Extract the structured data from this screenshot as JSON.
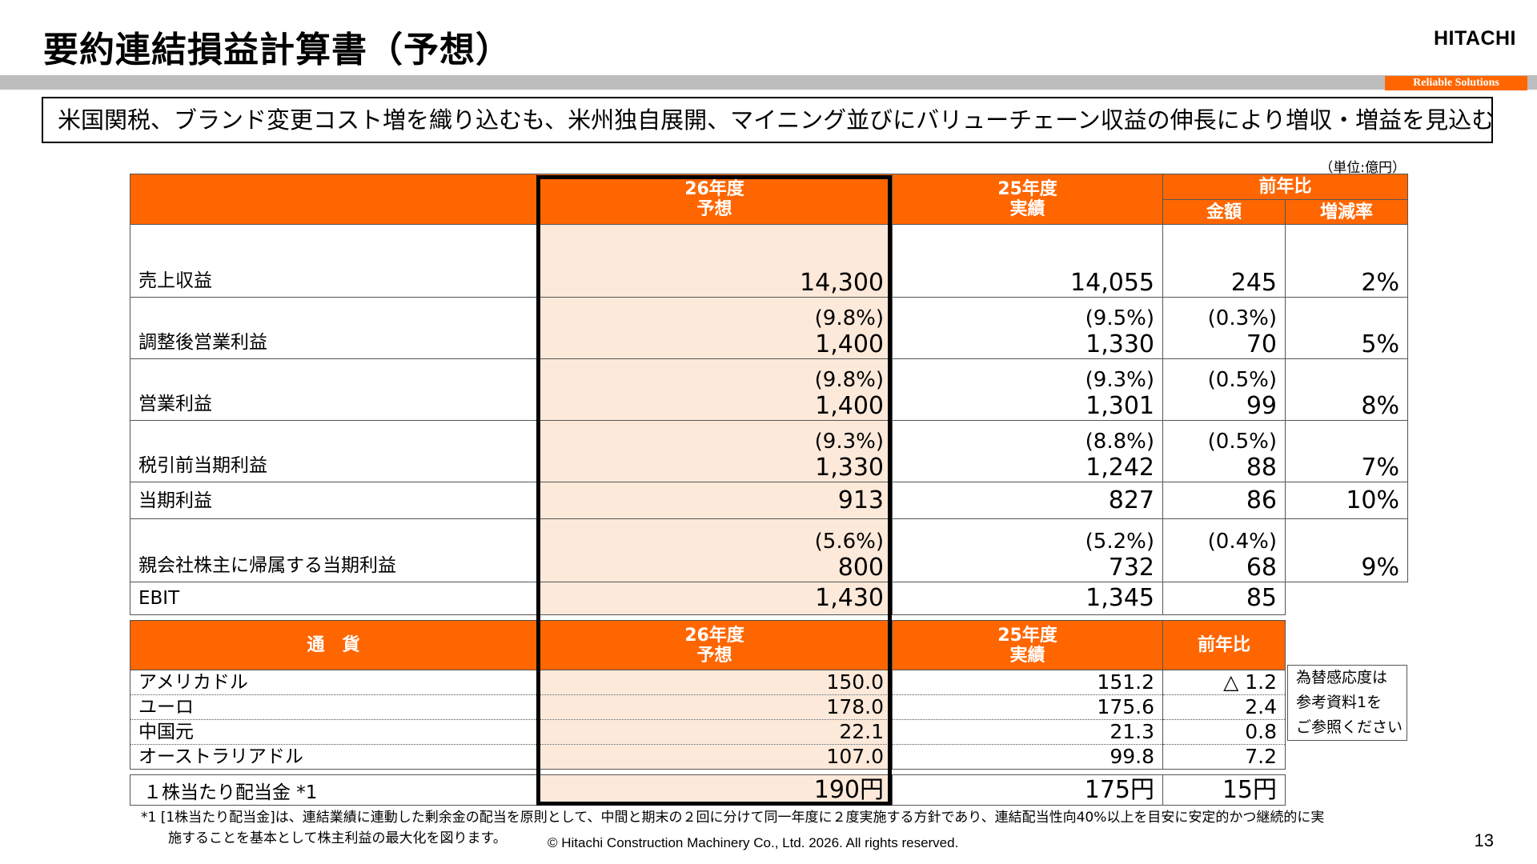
{
  "header": {
    "title": "要約連結損益計算書（予想）",
    "logo": "HITACHI",
    "tagline": "Reliable Solutions"
  },
  "headline": "米国関税、ブランド変更コスト増を織り込むも、米州独自展開、マイニング並びにバリューチェーン収益の伸長により増収・増益を見込む。",
  "unit": "（単位:億円）",
  "main_table": {
    "col_fc_line1": "26年度",
    "col_fc_line2": "予想",
    "col_act_line1": "25年度",
    "col_act_line2": "実績",
    "col_yoy": "前年比",
    "col_amount": "金額",
    "col_rate": "増減率",
    "rows": [
      {
        "label": "売上収益",
        "fc_pct": "",
        "fc": "14,300",
        "act_pct": "",
        "act": "14,055",
        "diff_pct": "",
        "diff": "245",
        "rate": "2%"
      },
      {
        "label": "調整後営業利益",
        "fc_pct": "(9.8%)",
        "fc": "1,400",
        "act_pct": "(9.5%)",
        "act": "1,330",
        "diff_pct": "(0.3%)",
        "diff": "70",
        "rate": "5%"
      },
      {
        "label": "営業利益",
        "fc_pct": "(9.8%)",
        "fc": "1,400",
        "act_pct": "(9.3%)",
        "act": "1,301",
        "diff_pct": "(0.5%)",
        "diff": "99",
        "rate": "8%"
      },
      {
        "label": "税引前当期利益",
        "fc_pct": "(9.3%)",
        "fc": "1,330",
        "act_pct": "(8.8%)",
        "act": "1,242",
        "diff_pct": "(0.5%)",
        "diff": "88",
        "rate": "7%"
      },
      {
        "label": "当期利益",
        "fc_pct": "",
        "fc": "913",
        "act_pct": "",
        "act": "827",
        "diff_pct": "",
        "diff": "86",
        "rate": "10%"
      },
      {
        "label": "親会社株主に帰属する当期利益",
        "fc_pct": "(5.6%)",
        "fc": "800",
        "act_pct": "(5.2%)",
        "act": "732",
        "diff_pct": "(0.4%)",
        "diff": "68",
        "rate": "9%"
      }
    ]
  },
  "ebit": {
    "label": "EBIT",
    "fc": "1,430",
    "act": "1,345",
    "diff": "85"
  },
  "currency_table": {
    "col_label": "通　貨",
    "col_fc_line1": "26年度",
    "col_fc_line2": "予想",
    "col_act_line1": "25年度",
    "col_act_line2": "実績",
    "col_yoy": "前年比",
    "rows": [
      {
        "label": "アメリカドル",
        "fc": "150.0",
        "act": "151.2",
        "diff": "△ 1.2"
      },
      {
        "label": "ユーロ",
        "fc": "178.0",
        "act": "175.6",
        "diff": "2.4"
      },
      {
        "label": "中国元",
        "fc": "22.1",
        "act": "21.3",
        "diff": "0.8"
      },
      {
        "label": "オーストラリアドル",
        "fc": "107.0",
        "act": "99.8",
        "diff": "7.2"
      }
    ]
  },
  "sensitivity_note": {
    "line1": "為替感応度は",
    "line2": "参考資料1を",
    "line3": "ご参照ください"
  },
  "dividend": {
    "label": "１株当たり配当金 *1",
    "fc": "190円",
    "act": "175円",
    "diff": "15円"
  },
  "footnote": {
    "line1": "*1 [1株当たり配当金]は、連結業績に連動した剰余金の配当を原則として、中間と期末の２回に分けて同一年度に２度実施する方針であり、連結配当性向40%以上を目安に安定的かつ継続的に実",
    "line2": "施することを基本として株主利益の最大化を図ります。"
  },
  "copyright": "© Hitachi Construction Machinery Co., Ltd. 2026. All rights reserved.",
  "page_number": "13",
  "colors": {
    "accent": "#ff6600",
    "forecast_fill": "#fde9d9",
    "rule": "#bdbdbd"
  }
}
